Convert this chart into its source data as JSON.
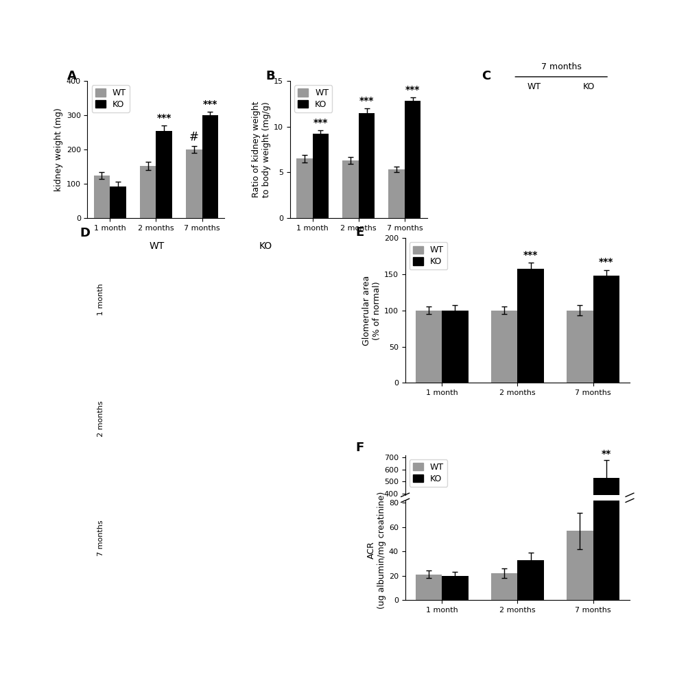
{
  "panel_A": {
    "categories": [
      "1 month",
      "2 months",
      "7 months"
    ],
    "WT_means": [
      125,
      152,
      200
    ],
    "KO_means": [
      92,
      255,
      300
    ],
    "WT_errors": [
      10,
      12,
      10
    ],
    "KO_errors": [
      15,
      15,
      10
    ],
    "ylabel": "kidney weight (mg)",
    "ylim": [
      0,
      400
    ],
    "yticks": [
      0,
      100,
      200,
      300,
      400
    ],
    "annotations_ko": [
      "",
      "***",
      "***"
    ],
    "annotations_wt": [
      "",
      "",
      "#"
    ]
  },
  "panel_B": {
    "categories": [
      "1 month",
      "2 months",
      "7 months"
    ],
    "WT_means": [
      6.5,
      6.3,
      5.3
    ],
    "KO_means": [
      9.2,
      11.5,
      12.8
    ],
    "WT_errors": [
      0.4,
      0.4,
      0.3
    ],
    "KO_errors": [
      0.4,
      0.5,
      0.4
    ],
    "ylabel": "Ratio of kidney weight\nto body weight (mg/g)",
    "ylim": [
      0,
      15
    ],
    "yticks": [
      0,
      5,
      10,
      15
    ],
    "annotations_ko": [
      "***",
      "***",
      "***"
    ],
    "annotations_wt": [
      "",
      "",
      ""
    ]
  },
  "panel_E": {
    "categories": [
      "1 month",
      "2 months",
      "7 months"
    ],
    "WT_means": [
      100,
      100,
      100
    ],
    "KO_means": [
      100,
      158,
      148
    ],
    "WT_errors": [
      5,
      5,
      7
    ],
    "KO_errors": [
      7,
      8,
      8
    ],
    "ylabel": "Glomerular area\n(% of normal)",
    "ylim": [
      0,
      200
    ],
    "yticks": [
      0,
      50,
      100,
      150,
      200
    ],
    "annotations_ko": [
      "",
      "***",
      "***"
    ],
    "annotations_wt": [
      "",
      "",
      ""
    ]
  },
  "panel_F": {
    "categories": [
      "1 month",
      "2 months",
      "7 months"
    ],
    "WT_means": [
      21,
      22,
      57
    ],
    "KO_means": [
      20,
      33,
      530
    ],
    "WT_errors": [
      3,
      4,
      15
    ],
    "KO_errors": [
      3,
      6,
      150
    ],
    "ylabel": "ACR\n(ug albumin/mg creatinine)",
    "annotations_ko": [
      "",
      "",
      "**"
    ],
    "annotations_wt": [
      "",
      "",
      ""
    ]
  },
  "colors": {
    "WT": "#999999",
    "KO": "#000000"
  },
  "bar_width": 0.35,
  "fontsize_label": 9,
  "fontsize_tick": 8,
  "fontsize_panel": 13,
  "fontsize_legend": 9,
  "fontsize_annot": 10
}
